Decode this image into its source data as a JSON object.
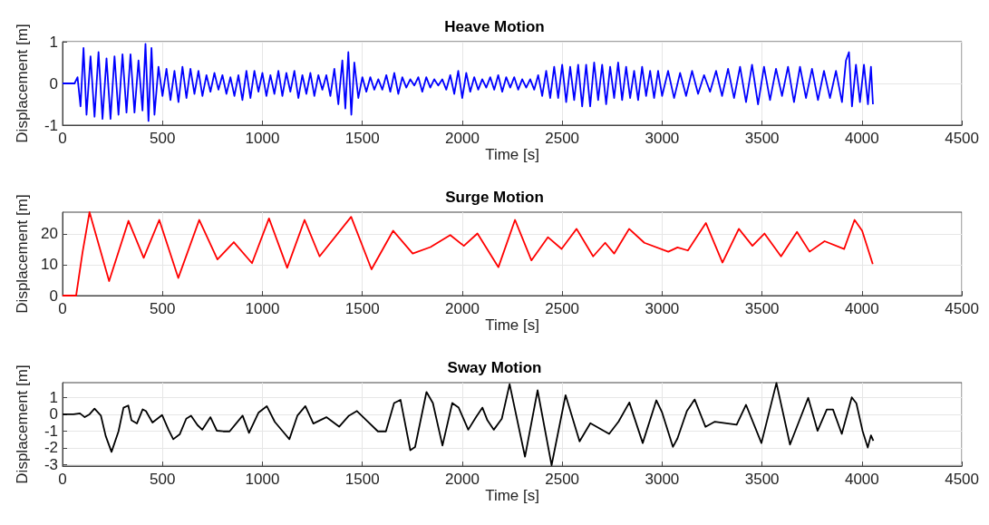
{
  "chart_data": [
    {
      "type": "line",
      "title": "Heave Motion",
      "xlabel": "Time [s]",
      "ylabel": "Displacement [m]",
      "color": "#0000ff",
      "xlim": [
        0,
        4500
      ],
      "xticks": [
        0,
        500,
        1000,
        1500,
        2000,
        2500,
        3000,
        3500,
        4000,
        4500
      ],
      "ylim": [
        -1,
        1
      ],
      "yticks": [
        -1,
        0,
        1
      ],
      "grid": true,
      "x": [
        0,
        60,
        75,
        90,
        105,
        120,
        140,
        160,
        180,
        200,
        220,
        240,
        260,
        280,
        300,
        320,
        340,
        360,
        380,
        400,
        415,
        430,
        445,
        460,
        480,
        500,
        520,
        540,
        560,
        580,
        600,
        620,
        640,
        660,
        680,
        700,
        720,
        740,
        760,
        780,
        800,
        820,
        840,
        860,
        880,
        900,
        920,
        940,
        960,
        980,
        1000,
        1020,
        1040,
        1060,
        1080,
        1100,
        1120,
        1140,
        1160,
        1180,
        1200,
        1220,
        1240,
        1260,
        1280,
        1300,
        1320,
        1340,
        1360,
        1380,
        1400,
        1415,
        1430,
        1445,
        1460,
        1480,
        1500,
        1520,
        1540,
        1560,
        1580,
        1600,
        1620,
        1640,
        1660,
        1680,
        1700,
        1720,
        1740,
        1760,
        1780,
        1800,
        1820,
        1840,
        1860,
        1880,
        1900,
        1920,
        1940,
        1960,
        1980,
        2000,
        2020,
        2040,
        2060,
        2080,
        2100,
        2120,
        2140,
        2160,
        2180,
        2200,
        2220,
        2240,
        2260,
        2280,
        2300,
        2320,
        2340,
        2360,
        2380,
        2400,
        2420,
        2440,
        2460,
        2480,
        2500,
        2520,
        2540,
        2560,
        2580,
        2600,
        2620,
        2640,
        2660,
        2680,
        2700,
        2720,
        2740,
        2760,
        2780,
        2800,
        2820,
        2840,
        2860,
        2880,
        2900,
        2920,
        2940,
        2960,
        2980,
        3000,
        3030,
        3060,
        3090,
        3120,
        3150,
        3180,
        3210,
        3240,
        3270,
        3300,
        3330,
        3360,
        3390,
        3420,
        3450,
        3480,
        3510,
        3540,
        3570,
        3600,
        3630,
        3660,
        3690,
        3720,
        3750,
        3780,
        3810,
        3840,
        3870,
        3900,
        3920,
        3935,
        3950,
        3970,
        3990,
        4010,
        4030,
        4045,
        4055
      ],
      "values": [
        0,
        0,
        0.15,
        -0.55,
        0.85,
        -0.75,
        0.65,
        -0.8,
        0.75,
        -0.85,
        0.6,
        -0.85,
        0.65,
        -0.75,
        0.7,
        -0.7,
        0.7,
        -0.7,
        0.55,
        -0.65,
        0.95,
        -0.9,
        0.85,
        -0.75,
        0.4,
        -0.3,
        0.35,
        -0.4,
        0.3,
        -0.45,
        0.4,
        -0.35,
        0.35,
        -0.25,
        0.3,
        -0.3,
        0.2,
        -0.2,
        0.25,
        -0.15,
        0.2,
        -0.25,
        0.15,
        -0.3,
        0.2,
        -0.4,
        0.3,
        -0.35,
        0.3,
        -0.2,
        0.25,
        -0.3,
        0.2,
        -0.25,
        0.3,
        -0.3,
        0.25,
        -0.2,
        0.3,
        -0.35,
        0.2,
        -0.25,
        0.25,
        -0.3,
        0.2,
        -0.15,
        0.2,
        -0.3,
        0.35,
        -0.5,
        0.55,
        -0.6,
        0.75,
        -0.75,
        0.5,
        -0.35,
        0.15,
        -0.2,
        0.15,
        -0.15,
        0.1,
        -0.15,
        0.2,
        -0.2,
        0.25,
        -0.25,
        0.15,
        -0.1,
        0.1,
        -0.05,
        0.15,
        -0.2,
        0.15,
        -0.1,
        0.1,
        -0.05,
        0.1,
        -0.15,
        0.2,
        -0.25,
        0.3,
        -0.35,
        0.25,
        -0.2,
        0.15,
        -0.15,
        0.1,
        -0.1,
        0.15,
        -0.15,
        0.2,
        -0.2,
        0.15,
        -0.1,
        0.15,
        -0.15,
        0.1,
        -0.1,
        0.1,
        -0.15,
        0.2,
        -0.3,
        0.3,
        -0.35,
        0.4,
        -0.35,
        0.45,
        -0.45,
        0.4,
        -0.4,
        0.45,
        -0.55,
        0.45,
        -0.55,
        0.5,
        -0.4,
        0.45,
        -0.5,
        0.4,
        -0.35,
        0.5,
        -0.4,
        0.4,
        -0.35,
        0.3,
        -0.4,
        0.4,
        -0.3,
        0.3,
        -0.35,
        0.3,
        -0.3,
        0.3,
        -0.35,
        0.25,
        -0.3,
        0.3,
        -0.25,
        0.2,
        -0.2,
        0.3,
        -0.3,
        0.35,
        -0.35,
        0.4,
        -0.45,
        0.45,
        -0.5,
        0.4,
        -0.4,
        0.35,
        -0.3,
        0.4,
        -0.45,
        0.4,
        -0.35,
        0.35,
        -0.4,
        0.3,
        -0.35,
        0.3,
        -0.45,
        0.55,
        0.75,
        -0.55,
        0.45,
        -0.45,
        0.45,
        -0.5,
        0.4,
        -0.5
      ]
    },
    {
      "type": "line",
      "title": "Surge Motion",
      "xlabel": "Time [s]",
      "ylabel": "Displacement [m]",
      "color": "#ff0000",
      "xlim": [
        0,
        4500
      ],
      "xticks": [
        0,
        500,
        1000,
        1500,
        2000,
        2500,
        3000,
        3500,
        4000,
        4500
      ],
      "ylim": [
        0,
        27
      ],
      "yticks": [
        0,
        10,
        20
      ],
      "grid": true,
      "x": [
        0,
        68,
        100,
        135,
        233,
        330,
        406,
        484,
        579,
        684,
        775,
        857,
        948,
        1033,
        1124,
        1211,
        1286,
        1444,
        1546,
        1654,
        1752,
        1841,
        1940,
        2008,
        2076,
        2181,
        2264,
        2346,
        2429,
        2497,
        2572,
        2655,
        2715,
        2760,
        2835,
        2911,
        3031,
        3077,
        3129,
        3219,
        3302,
        3384,
        3452,
        3512,
        3595,
        3675,
        3738,
        3813,
        3911,
        3963,
        4001,
        4054
      ],
      "values": [
        0,
        0,
        14,
        27,
        4.7,
        24.2,
        12.2,
        24.5,
        5.7,
        24.5,
        11.7,
        17.3,
        10.5,
        25,
        9,
        24.5,
        12.7,
        25.5,
        8.5,
        21,
        13.6,
        15.7,
        19.6,
        16.1,
        20.1,
        9.2,
        24.5,
        11.4,
        18.9,
        15.1,
        21.6,
        12.7,
        17.1,
        13.6,
        21.6,
        17.1,
        14.2,
        15.6,
        14.6,
        23.5,
        10.7,
        21.6,
        16.1,
        20.1,
        12.7,
        20.6,
        14.2,
        17.6,
        15.1,
        24.5,
        21,
        10.2
      ]
    },
    {
      "type": "line",
      "title": "Sway Motion",
      "xlabel": "Time [s]",
      "ylabel": "Displacement [m]",
      "color": "#000000",
      "xlim": [
        0,
        4500
      ],
      "xticks": [
        0,
        500,
        1000,
        1500,
        2000,
        2500,
        3000,
        3500,
        4000,
        4500
      ],
      "ylim": [
        -3.1,
        1.9
      ],
      "yticks": [
        -3,
        -2,
        -1,
        0,
        1
      ],
      "grid": true,
      "x": [
        0,
        55,
        87,
        111,
        135,
        160,
        192,
        216,
        245,
        280,
        305,
        329,
        345,
        372,
        401,
        417,
        450,
        498,
        530,
        554,
        586,
        619,
        643,
        675,
        699,
        740,
        772,
        804,
        836,
        901,
        933,
        981,
        1022,
        1062,
        1102,
        1135,
        1175,
        1215,
        1255,
        1320,
        1384,
        1433,
        1473,
        1521,
        1578,
        1618,
        1659,
        1691,
        1740,
        1764,
        1821,
        1853,
        1901,
        1950,
        1982,
        2030,
        2069,
        2101,
        2126,
        2158,
        2198,
        2237,
        2314,
        2377,
        2447,
        2517,
        2587,
        2641,
        2735,
        2782,
        2836,
        2903,
        2971,
        3000,
        3054,
        3077,
        3124,
        3163,
        3217,
        3264,
        3373,
        3420,
        3497,
        3572,
        3640,
        3731,
        3778,
        3824,
        3855,
        3899,
        3949,
        3972,
        4003,
        4029,
        4045,
        4057
      ],
      "values": [
        0,
        0,
        0.06,
        -0.17,
        0,
        0.34,
        -0.08,
        -1.3,
        -2.25,
        -1.02,
        0.4,
        0.53,
        -0.36,
        -0.55,
        0.3,
        0.2,
        -0.49,
        -0.04,
        -0.92,
        -1.49,
        -1.2,
        -0.26,
        -0.08,
        -0.64,
        -0.92,
        -0.17,
        -0.98,
        -1.02,
        -1.02,
        -0.08,
        -1.11,
        0.11,
        0.49,
        -0.45,
        -1.02,
        -1.49,
        -0.08,
        0.49,
        -0.55,
        -0.17,
        -0.74,
        -0.08,
        0.2,
        -0.36,
        -1.02,
        -1.02,
        0.68,
        0.87,
        -2.15,
        -1.96,
        1.34,
        0.68,
        -1.87,
        0.68,
        0.4,
        -0.92,
        -0.17,
        0.4,
        -0.36,
        -0.92,
        -0.26,
        1.81,
        -2.54,
        1.44,
        -3.05,
        1.15,
        -1.62,
        -0.53,
        -1.17,
        -0.44,
        0.71,
        -1.72,
        0.84,
        0.11,
        -1.95,
        -1.44,
        0.2,
        0.89,
        -0.75,
        -0.44,
        -0.62,
        0.57,
        -1.72,
        1.88,
        -1.81,
        0.99,
        -0.99,
        0.29,
        0.29,
        -1.17,
        1.02,
        0.66,
        -0.99,
        -1.99,
        -1.26,
        -1.59
      ]
    }
  ]
}
